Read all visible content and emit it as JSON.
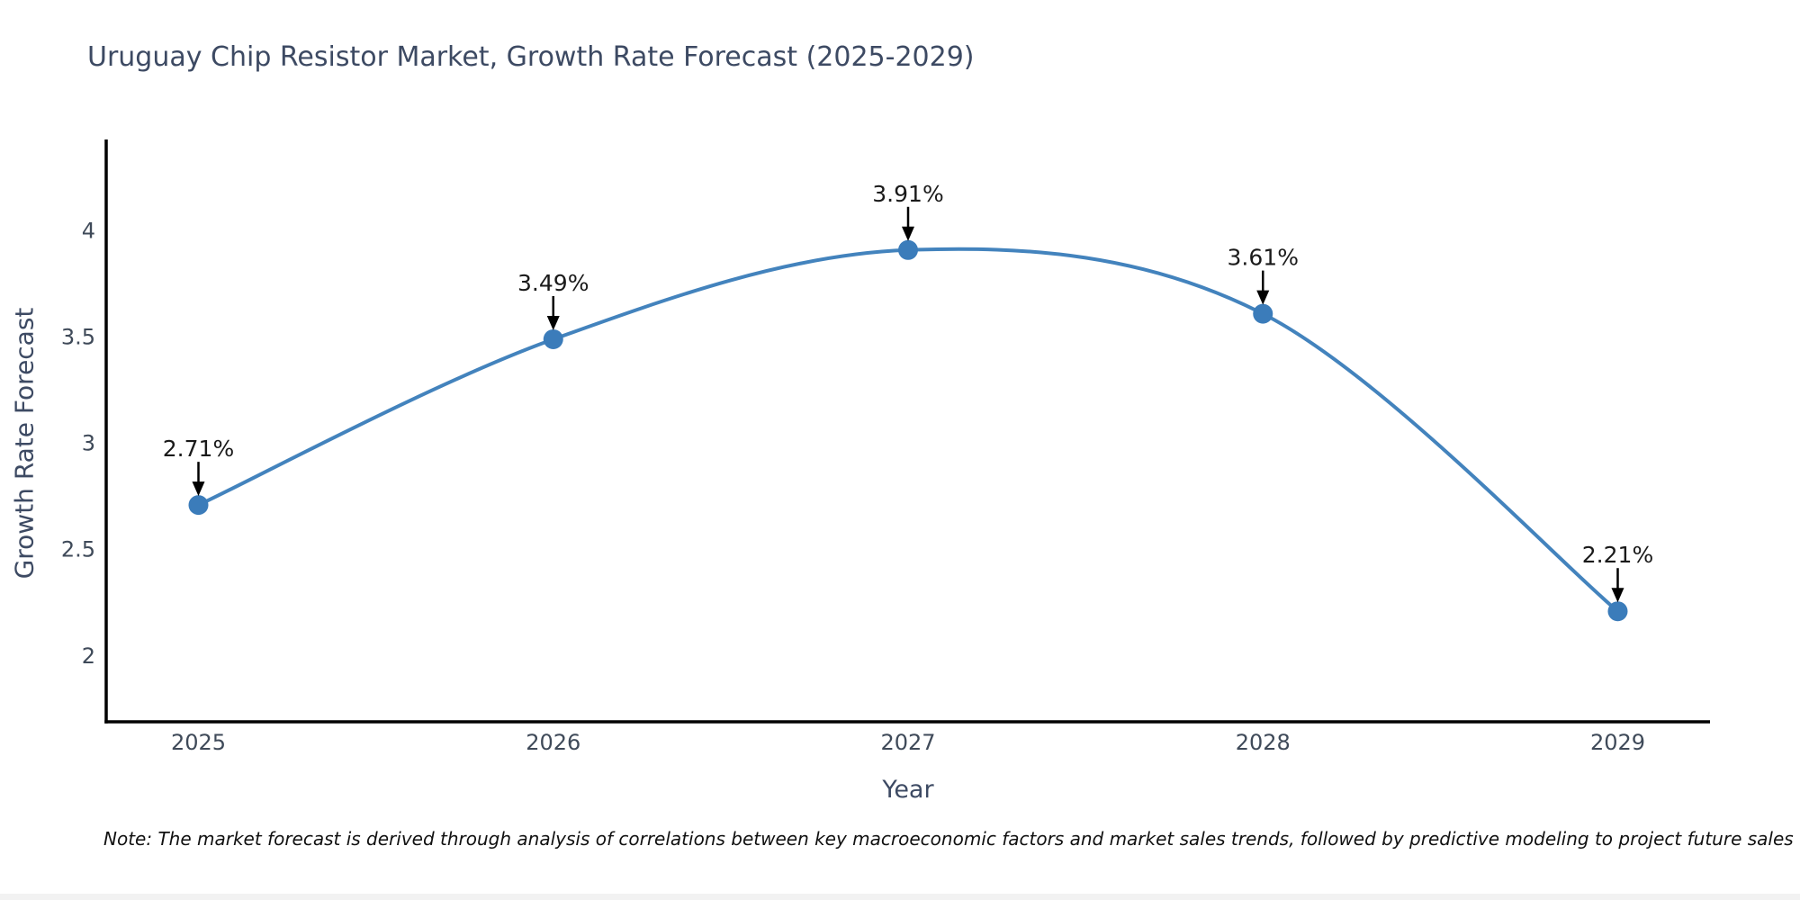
{
  "page": {
    "background": "#ffffff"
  },
  "chart_data": {
    "type": "line",
    "title": "Uruguay Chip Resistor Market, Growth Rate Forecast (2025-2029)",
    "xlabel": "Year",
    "ylabel": "Growth Rate Forecast",
    "x": [
      2025,
      2026,
      2027,
      2028,
      2029
    ],
    "values": [
      2.71,
      3.49,
      3.91,
      3.61,
      2.21
    ],
    "point_labels": [
      "2.71%",
      "3.49%",
      "3.91%",
      "3.61%",
      "2.21%"
    ],
    "xtick_labels": [
      "2025",
      "2026",
      "2027",
      "2028",
      "2029"
    ],
    "yticks": [
      2,
      2.5,
      3,
      3.5,
      4
    ],
    "ytick_labels": [
      "2",
      "2.5",
      "3",
      "3.5",
      "4"
    ],
    "xlim": [
      2024.74,
      2029.26
    ],
    "ylim": [
      1.69,
      4.43
    ],
    "grid": false,
    "legend": null,
    "curve": "spline",
    "line_color": "#4383bd",
    "marker_color": "#3b7cba",
    "axis_color": "#000000",
    "annotation_color": "#1a1a1a",
    "tick_color": "#3f4a59"
  },
  "footnote": {
    "text": "Note: The market forecast is derived through analysis of correlations between key macroeconomic factors and market sales trends, followed by predictive modeling to project future sales"
  }
}
